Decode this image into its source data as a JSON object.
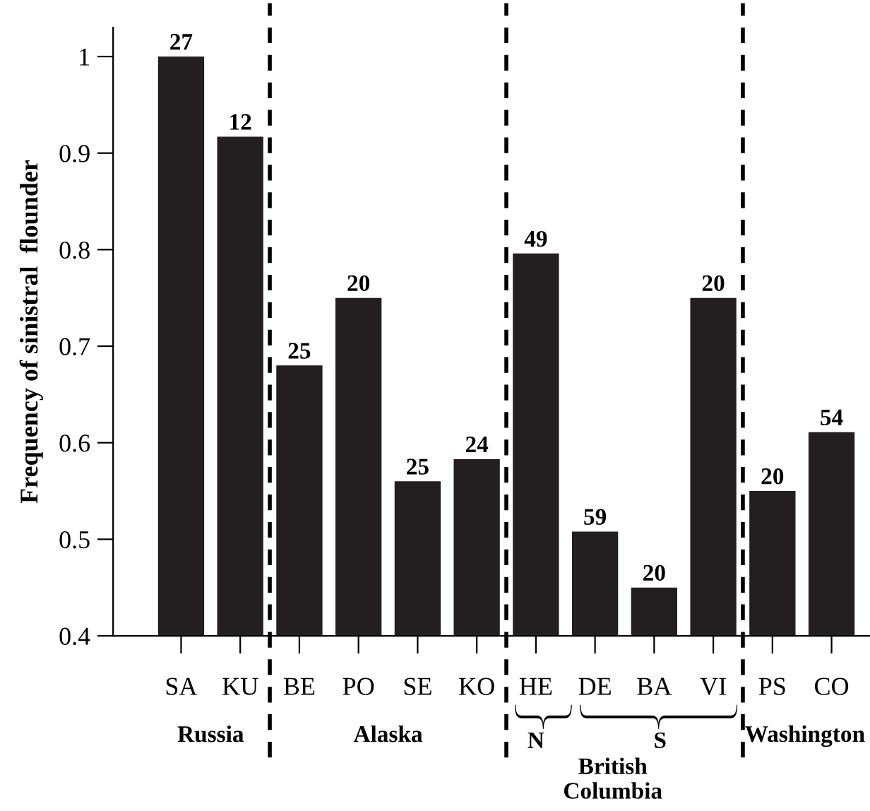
{
  "chart_data": {
    "type": "bar",
    "ylabel": "Frequency of sinistral  flounder",
    "categories": [
      "SA",
      "KU",
      "BE",
      "PO",
      "SE",
      "KO",
      "HE",
      "DE",
      "BA",
      "VI",
      "PS",
      "CO"
    ],
    "values": [
      1.0,
      0.917,
      0.68,
      0.75,
      0.56,
      0.583,
      0.796,
      0.508,
      0.45,
      0.75,
      0.55,
      0.611
    ],
    "color": "#231f20",
    "ylim": [
      0.4,
      1.03
    ],
    "yticks": [
      0.4,
      0.5,
      0.6,
      0.7,
      0.8,
      0.9,
      1
    ],
    "annotations": [
      {
        "text": "27",
        "x": "SA",
        "y": 1.0
      },
      {
        "text": "12",
        "x": "KU",
        "y": 0.917
      },
      {
        "text": "25",
        "x": "BE",
        "y": 0.68
      },
      {
        "text": "20",
        "x": "PO",
        "y": 0.75
      },
      {
        "text": "25",
        "x": "SE",
        "y": 0.56
      },
      {
        "text": "24",
        "x": "KO",
        "y": 0.583
      },
      {
        "text": "49",
        "x": "HE",
        "y": 0.796
      },
      {
        "text": "59",
        "x": "DE",
        "y": 0.508
      },
      {
        "text": "20",
        "x": "BA",
        "y": 0.45
      },
      {
        "text": "20",
        "x": "VI",
        "y": 0.75
      },
      {
        "text": "20",
        "x": "PS",
        "y": 0.55
      },
      {
        "text": "54",
        "x": "CO",
        "y": 0.611
      },
      "Russia",
      "Alaska",
      "N",
      "S",
      "British\nColumbia",
      "Washington"
    ]
  }
}
